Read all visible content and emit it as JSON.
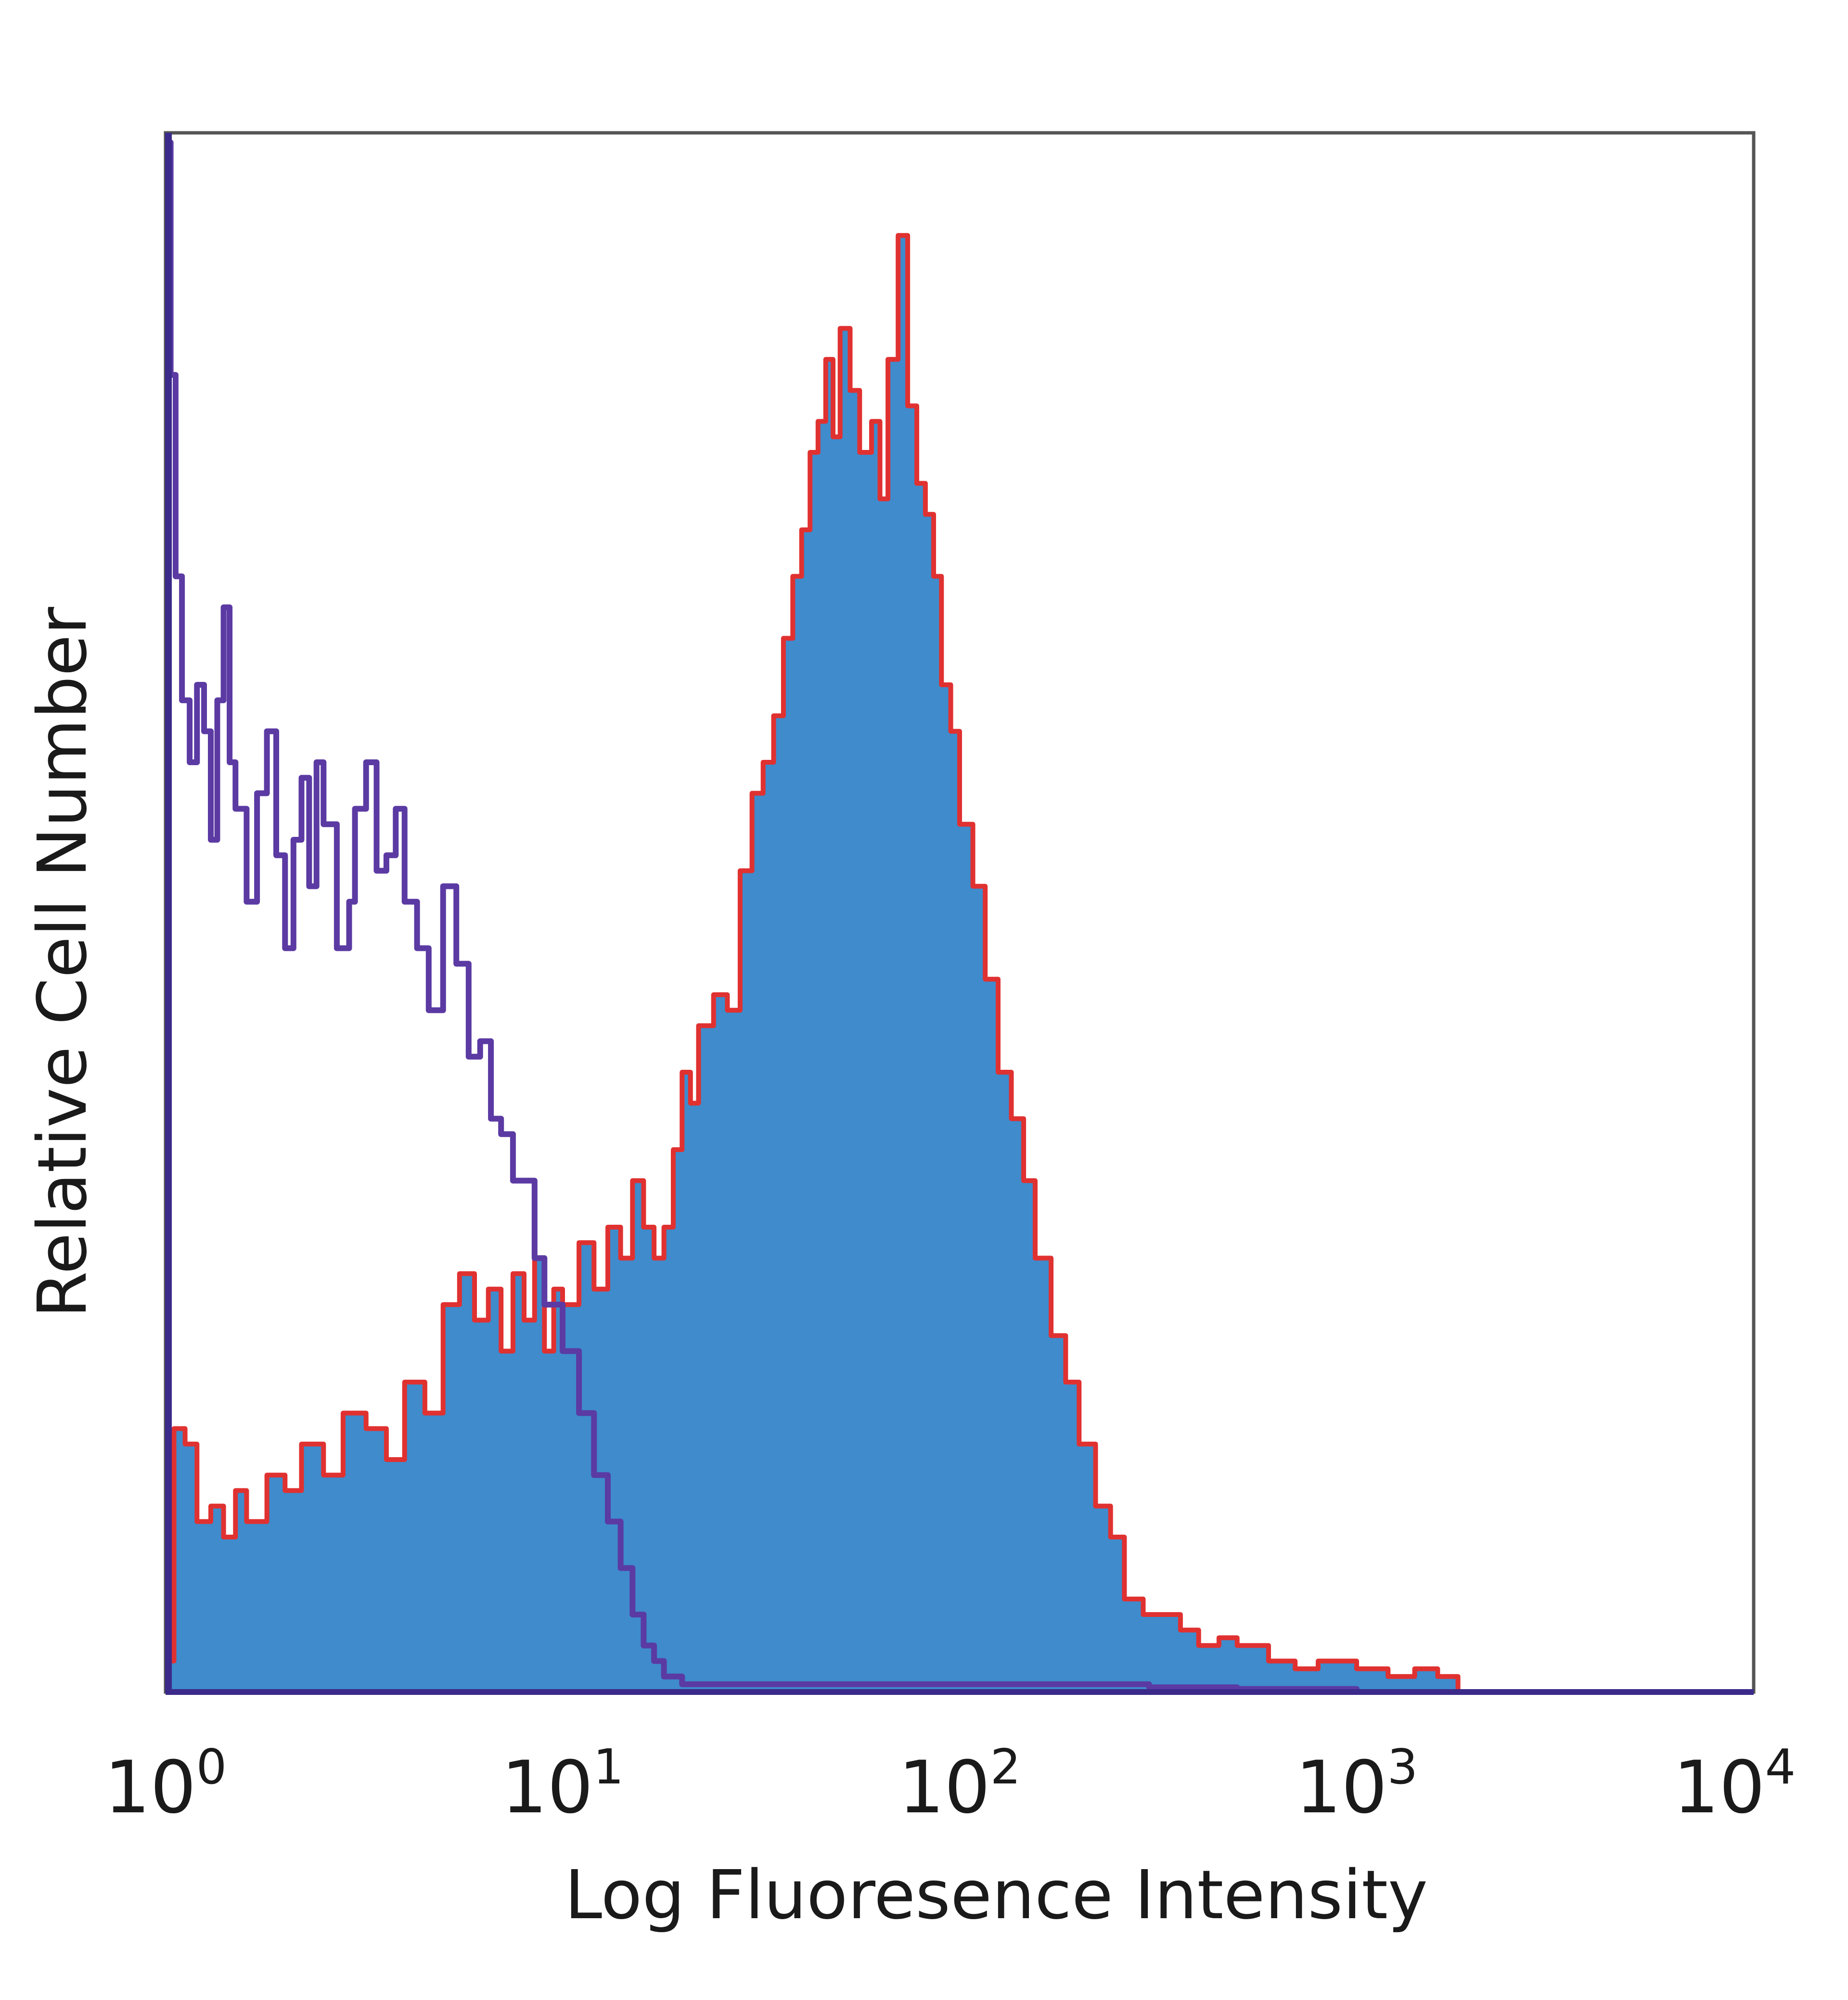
{
  "chart_data": {
    "type": "area",
    "title": "",
    "xlabel": "Log Fluoresence Intensity",
    "ylabel": "Relative Cell Number",
    "x_scale": "log",
    "xlim": [
      1,
      10000
    ],
    "ylim": [
      0,
      1.0
    ],
    "grid": false,
    "legend": "none",
    "x_ticks": [
      {
        "base": "10",
        "exp": "0",
        "value": 1
      },
      {
        "base": "10",
        "exp": "1",
        "value": 10
      },
      {
        "base": "10",
        "exp": "2",
        "value": 100
      },
      {
        "base": "10",
        "exp": "3",
        "value": 1000
      },
      {
        "base": "10",
        "exp": "4",
        "value": 10000
      }
    ],
    "series": [
      {
        "style": "filled",
        "fill_color": "#3f8bcc",
        "line_color": "#e03131",
        "x": [
          1.0,
          1.05,
          1.12,
          1.2,
          1.3,
          1.4,
          1.5,
          1.6,
          1.8,
          2.0,
          2.2,
          2.5,
          2.8,
          3.2,
          3.6,
          4.0,
          4.5,
          5.0,
          5.5,
          6.0,
          6.5,
          7.0,
          7.5,
          8.0,
          8.5,
          9.0,
          9.5,
          10.0,
          11.0,
          12.0,
          13.0,
          14.0,
          15.0,
          16.0,
          17.0,
          18.0,
          19.0,
          20.0,
          21.0,
          22.0,
          24.0,
          26.0,
          28.0,
          30.0,
          32.0,
          34.0,
          36.0,
          38.0,
          40.0,
          42.0,
          44.0,
          46.0,
          48.0,
          50.0,
          53.0,
          56.0,
          60.0,
          63.0,
          66.0,
          70.0,
          74.0,
          78.0,
          82.0,
          86.0,
          90.0,
          95.0,
          100.0,
          108.0,
          116.0,
          125.0,
          135.0,
          145.0,
          155.0,
          170.0,
          185.0,
          200.0,
          220.0,
          240.0,
          260.0,
          290.0,
          320.0,
          360.0,
          400.0,
          450.0,
          500.0,
          600.0,
          700.0,
          800.0,
          1000.0,
          1200.0,
          1400.0,
          1600.0,
          1800.0
        ],
        "values": [
          0.02,
          0.17,
          0.16,
          0.11,
          0.12,
          0.1,
          0.13,
          0.11,
          0.14,
          0.13,
          0.16,
          0.14,
          0.18,
          0.17,
          0.15,
          0.2,
          0.18,
          0.25,
          0.27,
          0.24,
          0.26,
          0.22,
          0.27,
          0.24,
          0.28,
          0.22,
          0.26,
          0.25,
          0.29,
          0.26,
          0.3,
          0.28,
          0.33,
          0.3,
          0.28,
          0.3,
          0.35,
          0.4,
          0.38,
          0.43,
          0.45,
          0.44,
          0.53,
          0.58,
          0.6,
          0.63,
          0.68,
          0.72,
          0.75,
          0.8,
          0.82,
          0.86,
          0.81,
          0.88,
          0.84,
          0.8,
          0.82,
          0.77,
          0.86,
          0.94,
          0.83,
          0.78,
          0.76,
          0.72,
          0.65,
          0.62,
          0.56,
          0.52,
          0.46,
          0.4,
          0.37,
          0.33,
          0.28,
          0.23,
          0.2,
          0.16,
          0.12,
          0.1,
          0.06,
          0.05,
          0.05,
          0.04,
          0.03,
          0.035,
          0.03,
          0.02,
          0.015,
          0.02,
          0.015,
          0.01,
          0.015,
          0.01,
          0.0
        ]
      },
      {
        "style": "line",
        "line_color": "#5b3aa3",
        "x": [
          1.0,
          1.03,
          1.06,
          1.1,
          1.15,
          1.2,
          1.25,
          1.3,
          1.35,
          1.4,
          1.45,
          1.5,
          1.6,
          1.7,
          1.8,
          1.9,
          2.0,
          2.1,
          2.2,
          2.3,
          2.4,
          2.5,
          2.7,
          2.9,
          3.0,
          3.2,
          3.4,
          3.6,
          3.8,
          4.0,
          4.3,
          4.6,
          5.0,
          5.4,
          5.8,
          6.2,
          6.6,
          7.0,
          7.5,
          8.0,
          8.5,
          9.0,
          10.0,
          11.0,
          12.0,
          13.0,
          14.0,
          15.0,
          16.0,
          17.0,
          18.0,
          20.0,
          25.0,
          30.0,
          40.0,
          60.0,
          80.0,
          100.0,
          150.0,
          200.0,
          300.0,
          500.0,
          1000.0
        ],
        "values": [
          1.0,
          0.85,
          0.72,
          0.64,
          0.6,
          0.65,
          0.62,
          0.55,
          0.64,
          0.7,
          0.6,
          0.57,
          0.51,
          0.58,
          0.62,
          0.54,
          0.48,
          0.55,
          0.59,
          0.52,
          0.6,
          0.56,
          0.48,
          0.51,
          0.57,
          0.6,
          0.53,
          0.54,
          0.57,
          0.51,
          0.48,
          0.44,
          0.52,
          0.47,
          0.41,
          0.42,
          0.37,
          0.36,
          0.33,
          0.33,
          0.28,
          0.25,
          0.22,
          0.18,
          0.14,
          0.11,
          0.08,
          0.05,
          0.03,
          0.02,
          0.01,
          0.005,
          0.005,
          0.005,
          0.005,
          0.005,
          0.005,
          0.005,
          0.005,
          0.005,
          0.003,
          0.002,
          0.0
        ]
      }
    ]
  }
}
